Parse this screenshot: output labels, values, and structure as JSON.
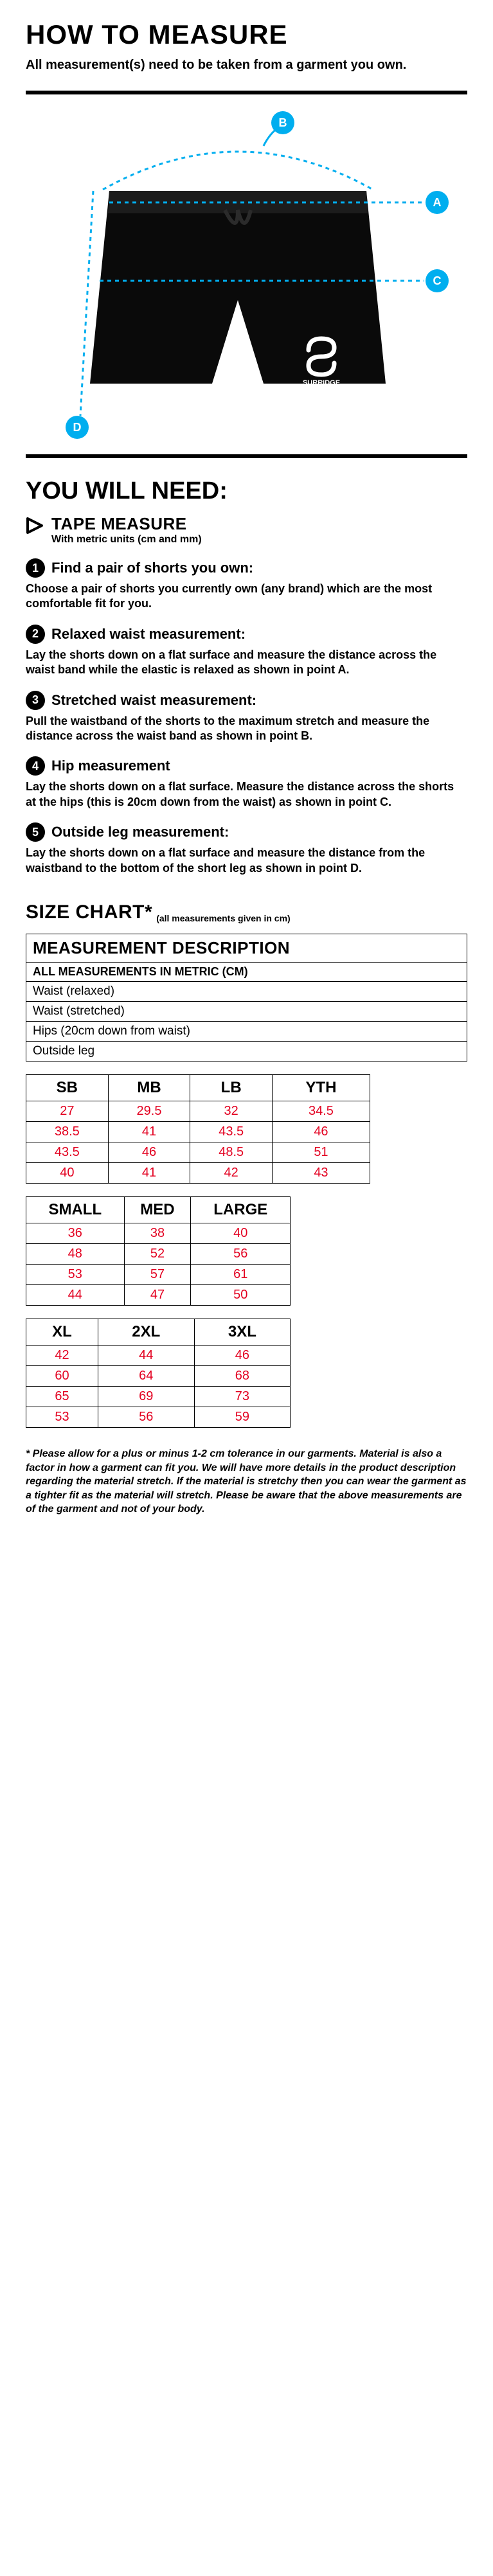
{
  "colors": {
    "accent": "#00aeef",
    "value": "#e30020",
    "text": "#000000",
    "bg": "#ffffff"
  },
  "header": {
    "title": "HOW TO MEASURE",
    "intro": "All measurement(s) need to be taken from a garment you own."
  },
  "diagram": {
    "markers": [
      "A",
      "B",
      "C",
      "D"
    ]
  },
  "needs": {
    "heading": "YOU WILL NEED:",
    "tape": {
      "title": "TAPE MEASURE",
      "sub": "With metric units (cm and mm)"
    },
    "steps": [
      {
        "num": "1",
        "title": "Find a pair of shorts you own:",
        "body": "Choose a pair of shorts you currently own (any brand) which are the most comfortable fit for you."
      },
      {
        "num": "2",
        "title": "Relaxed waist measurement:",
        "body": "Lay the shorts down on a flat surface and measure the distance across the waist band while the elastic is relaxed as shown in point A."
      },
      {
        "num": "3",
        "title": "Stretched waist measurement:",
        "body": "Pull the waistband of the shorts to the maximum stretch and measure the distance across the waist band as shown in point B."
      },
      {
        "num": "4",
        "title": "Hip measurement",
        "body": "Lay the shorts down on a flat surface. Measure the distance across the shorts at the hips (this is 20cm down from the waist) as shown in point C."
      },
      {
        "num": "5",
        "title": "Outside leg measurement:",
        "body": "Lay the shorts down on a flat surface and measure the distance from the waistband to the bottom of the short leg as shown in point D."
      }
    ]
  },
  "size_chart": {
    "title": "SIZE CHART*",
    "note": "(all measurements given in cm)",
    "desc_heading": "MEASUREMENT DESCRIPTION",
    "desc_sub": "ALL MEASUREMENTS IN METRIC (CM)",
    "desc_rows": [
      "Waist (relaxed)",
      "Waist (stretched)",
      "Hips (20cm down from waist)",
      "Outside leg"
    ],
    "tables": [
      {
        "headers": [
          "SB",
          "MB",
          "LB",
          "YTH"
        ],
        "rows": [
          [
            "27",
            "29.5",
            "32",
            "34.5"
          ],
          [
            "38.5",
            "41",
            "43.5",
            "46"
          ],
          [
            "43.5",
            "46",
            "48.5",
            "51"
          ],
          [
            "40",
            "41",
            "42",
            "43"
          ]
        ]
      },
      {
        "headers": [
          "SMALL",
          "MED",
          "LARGE"
        ],
        "rows": [
          [
            "36",
            "38",
            "40"
          ],
          [
            "48",
            "52",
            "56"
          ],
          [
            "53",
            "57",
            "61"
          ],
          [
            "44",
            "47",
            "50"
          ]
        ]
      },
      {
        "headers": [
          "XL",
          "2XL",
          "3XL"
        ],
        "rows": [
          [
            "42",
            "44",
            "46"
          ],
          [
            "60",
            "64",
            "68"
          ],
          [
            "65",
            "69",
            "73"
          ],
          [
            "53",
            "56",
            "59"
          ]
        ]
      }
    ],
    "disclaimer": "* Please allow for a plus or minus 1-2 cm tolerance in our garments. Material is also a factor in how a garment can fit you. We will have more details in the product description regarding the material stretch. If the material is stretchy then you can wear the garment as a tighter fit as the material will stretch. Please be aware that the above measurements are of the garment and not of your body."
  }
}
